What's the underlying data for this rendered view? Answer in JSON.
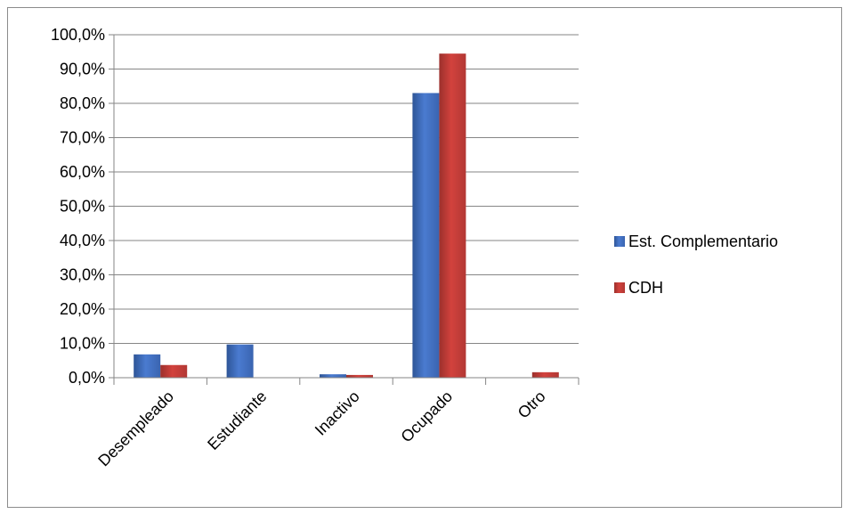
{
  "chart_data": {
    "type": "bar",
    "categories": [
      "Desempleado",
      "Estudiante",
      "Inactivo",
      "Ocupado",
      "Otro"
    ],
    "series": [
      {
        "name": "Est. Complementario",
        "values": [
          6.8,
          9.7,
          1.0,
          83.0,
          0.0
        ],
        "color": "#4472C4"
      },
      {
        "name": "CDH",
        "values": [
          3.7,
          0.0,
          0.8,
          94.5,
          1.6
        ],
        "color": "#C0504D"
      }
    ],
    "ylim": [
      0,
      100
    ],
    "y_ticks": [
      "0,0%",
      "10,0%",
      "20,0%",
      "30,0%",
      "40,0%",
      "50,0%",
      "60,0%",
      "70,0%",
      "80,0%",
      "90,0%",
      "100,0%"
    ],
    "grid": true,
    "legend_position": "right",
    "title": "",
    "xlabel": "",
    "ylabel": ""
  }
}
